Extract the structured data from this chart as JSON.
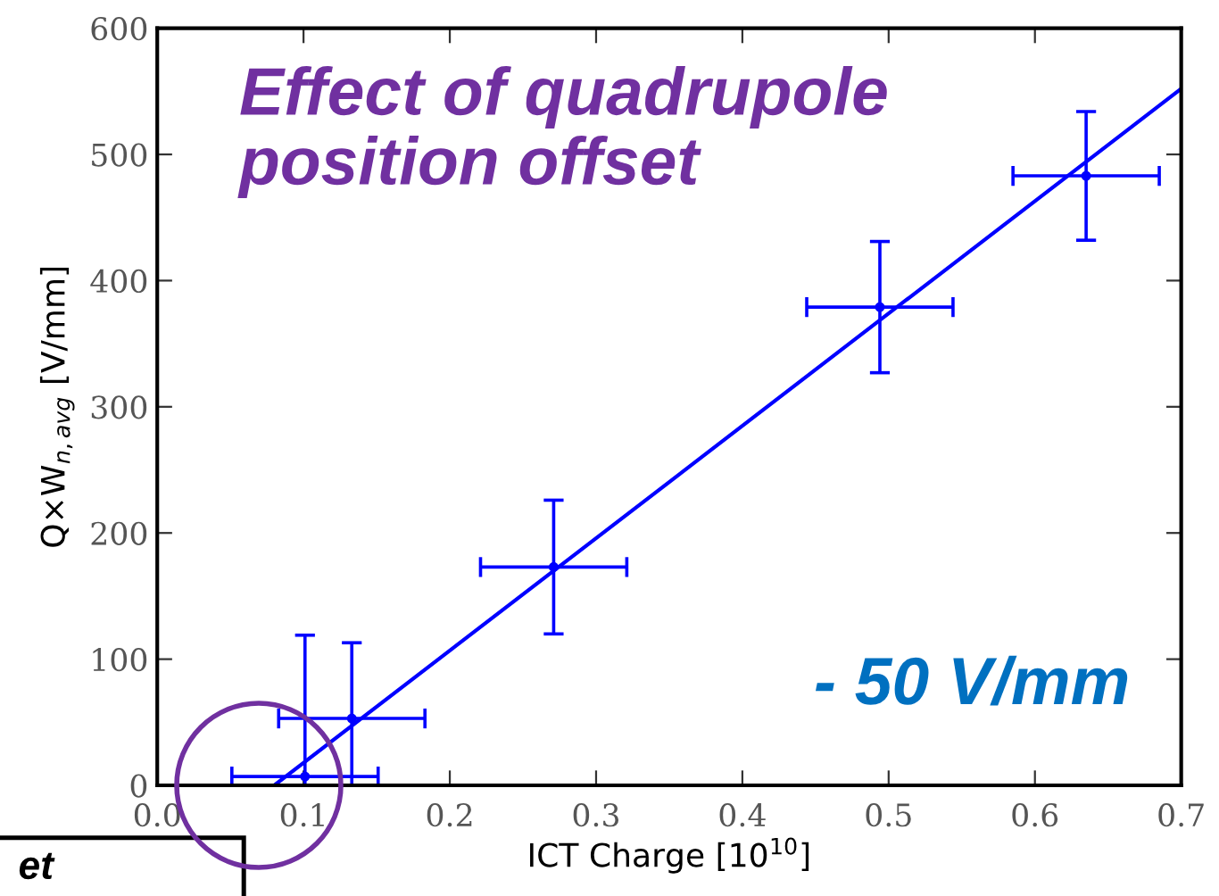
{
  "chart_data": {
    "type": "scatter",
    "xlabel": "ICT Charge [10$^{10}$]",
    "ylabel": "Q×W$_{n,avg}$ [V/mm]",
    "series": [
      {
        "color": "#0000ff",
        "x": [
          0.101,
          0.133,
          0.271,
          0.494,
          0.635
        ],
        "values": [
          7,
          53,
          173,
          379,
          483
        ],
        "errors": [
          [
            0,
            119
          ],
          [
            0,
            113
          ],
          53,
          52,
          51
        ],
        "xerrors": [
          0.05,
          0.05,
          0.05,
          0.05,
          0.05
        ],
        "marker": "circle"
      },
      {
        "type": "line",
        "color": "#0000ff",
        "x": [
          0.08,
          0.7
        ],
        "values": [
          0,
          552
        ],
        "marker": "none",
        "line_style": "solid"
      }
    ],
    "xlim": [
      0.0,
      0.7
    ],
    "ylim": [
      0,
      600
    ],
    "xticks": [
      "0.0",
      0.1,
      0.2,
      0.3,
      0.4,
      0.5,
      0.6,
      0.7
    ],
    "yticks": [
      0,
      100,
      200,
      300,
      400,
      500,
      600
    ],
    "grid": false,
    "annotations": [
      "Effect of quadrupole\nposition offset",
      "- 50 V/mm",
      "et"
    ]
  }
}
